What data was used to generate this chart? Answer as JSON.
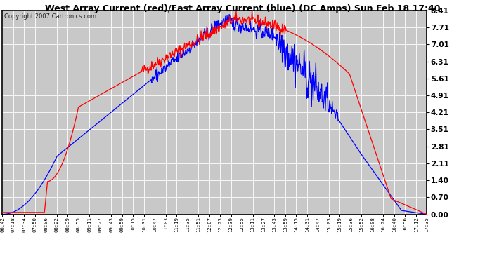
{
  "title": "West Array Current (red)/East Array Current (blue) (DC Amps) Sun Feb 18 17:40",
  "copyright": "Copyright 2007 Cartronics.com",
  "y_ticks": [
    0.0,
    0.7,
    1.4,
    2.11,
    2.81,
    3.51,
    4.21,
    4.91,
    5.61,
    6.31,
    7.01,
    7.71,
    8.41
  ],
  "y_max": 8.41,
  "y_min": 0.0,
  "x_labels": [
    "06:42",
    "07:18",
    "07:34",
    "07:50",
    "08:06",
    "08:22",
    "08:39",
    "08:55",
    "09:11",
    "09:27",
    "09:43",
    "09:59",
    "10:15",
    "10:31",
    "10:47",
    "11:03",
    "11:19",
    "11:35",
    "11:51",
    "12:07",
    "12:23",
    "12:39",
    "12:55",
    "13:11",
    "13:27",
    "13:43",
    "13:59",
    "14:15",
    "14:31",
    "14:47",
    "15:03",
    "15:19",
    "15:36",
    "15:52",
    "16:08",
    "16:24",
    "16:40",
    "16:56",
    "17:12",
    "17:35"
  ],
  "plot_bg_color": "#c8c8c8",
  "grid_color": "#ffffff",
  "red_color": "#ff0000",
  "blue_color": "#0000ff",
  "title_bg_color": "#ffffff"
}
